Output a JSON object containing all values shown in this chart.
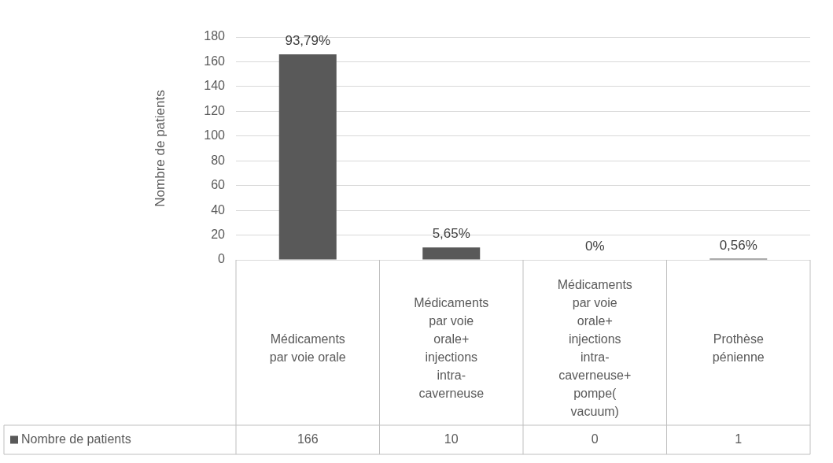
{
  "chart_data": {
    "type": "bar",
    "ylabel": "Nombre de patients",
    "categories": [
      "Médicaments par voie orale",
      "Médicaments par voie orale+ injections intra-caverneuse",
      "Médicaments par voie orale+ injections intra-caverneuse+ pompe( vacuum)",
      "Prothèse pénienne"
    ],
    "series": [
      {
        "name": "Nombre de patients",
        "color": "#595959",
        "values": [
          166,
          10,
          0,
          1
        ],
        "value_labels": [
          "166",
          "10",
          "0",
          "1"
        ]
      }
    ],
    "annotations": [
      {
        "text": "93,79%",
        "x": "Médicaments par voie orale",
        "y": 166
      },
      {
        "text": "5,65%",
        "x": "Médicaments par voie orale+ injections intra-caverneuse",
        "y": 10
      },
      {
        "text": "0%",
        "x": "Médicaments par voie orale+ injections intra-caverneuse+ pompe( vacuum)",
        "y": 0
      },
      {
        "text": "0,56%",
        "x": "Prothèse pénienne",
        "y": 1
      }
    ],
    "ylim": [
      0,
      180
    ],
    "yticks": [
      0,
      20,
      40,
      60,
      80,
      100,
      120,
      140,
      160,
      180
    ],
    "grid": "y",
    "legend": "bottom"
  }
}
